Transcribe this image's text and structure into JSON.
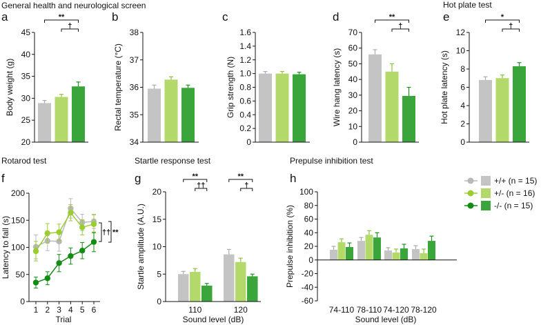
{
  "sections": {
    "general": "General health and neurological screen",
    "hotplate": "Hot plate test",
    "rotarod": "Rotarod test",
    "startle": "Startle response test",
    "ppi": "Prepulse inhibition test"
  },
  "legend": {
    "items": [
      {
        "label": "+/+ (n = 15)",
        "bar": "#c4c4c4",
        "dot": "#b8b8b8"
      },
      {
        "label": "+/- (n = 16)",
        "bar": "#b3d96b",
        "dot": "#9acd32"
      },
      {
        "label": "-/- (n = 15)",
        "bar": "#3aa53a",
        "dot": "#128c12"
      }
    ]
  },
  "chart_data": [
    {
      "panel": "a",
      "type": "bar",
      "ylabel": "Body weight (g)",
      "ylim": [
        20,
        45
      ],
      "yticks": [
        20,
        25,
        30,
        35,
        40,
        45
      ],
      "categories": [
        ""
      ],
      "series": [
        {
          "name": "+/+",
          "values": [
            28.9
          ],
          "sem": [
            0.6
          ]
        },
        {
          "name": "+/-",
          "values": [
            30.3
          ],
          "sem": [
            0.6
          ]
        },
        {
          "name": "-/-",
          "values": [
            32.7
          ],
          "sem": [
            1.0
          ]
        }
      ],
      "significance": [
        {
          "group": 0,
          "from": 0,
          "to": 2,
          "label": "**"
        },
        {
          "group": 0,
          "from": 1,
          "to": 2,
          "label": "†"
        }
      ]
    },
    {
      "panel": "b",
      "type": "bar",
      "ylabel": "Rectal temperature (°C)",
      "ylim": [
        34,
        38
      ],
      "yticks": [
        34,
        35,
        36,
        37,
        38
      ],
      "categories": [
        ""
      ],
      "series": [
        {
          "name": "+/+",
          "values": [
            35.95
          ],
          "sem": [
            0.13
          ]
        },
        {
          "name": "+/-",
          "values": [
            36.28
          ],
          "sem": [
            0.1
          ]
        },
        {
          "name": "-/-",
          "values": [
            35.98
          ],
          "sem": [
            0.1
          ]
        }
      ],
      "significance": []
    },
    {
      "panel": "c",
      "type": "bar",
      "ylabel": "Grip strength (N)",
      "ylim": [
        0,
        1.6
      ],
      "yticks": [
        "0",
        "0.2",
        "0.4",
        "0.6",
        "0.8",
        "1.0",
        "1.2",
        "1.4",
        "1.6"
      ],
      "categories": [
        ""
      ],
      "series": [
        {
          "name": "+/+",
          "values": [
            1.0
          ],
          "sem": [
            0.03
          ]
        },
        {
          "name": "+/-",
          "values": [
            1.0
          ],
          "sem": [
            0.03
          ]
        },
        {
          "name": "-/-",
          "values": [
            0.99
          ],
          "sem": [
            0.03
          ]
        }
      ],
      "significance": []
    },
    {
      "panel": "d",
      "type": "bar",
      "ylabel": "Wire hang latency (s)",
      "ylim": [
        0,
        70
      ],
      "yticks": [
        0,
        10,
        20,
        30,
        40,
        50,
        60,
        70
      ],
      "categories": [
        ""
      ],
      "series": [
        {
          "name": "+/+",
          "values": [
            56
          ],
          "sem": [
            3
          ]
        },
        {
          "name": "+/-",
          "values": [
            45
          ],
          "sem": [
            5
          ]
        },
        {
          "name": "-/-",
          "values": [
            29.5
          ],
          "sem": [
            5.5
          ]
        }
      ],
      "significance": [
        {
          "group": 0,
          "from": 0,
          "to": 2,
          "label": "**"
        },
        {
          "group": 0,
          "from": 1,
          "to": 2,
          "label": "†"
        }
      ]
    },
    {
      "panel": "e",
      "type": "bar",
      "ylabel": "Hot plate latency (s)",
      "ylim": [
        0,
        12
      ],
      "yticks": [
        0,
        2,
        4,
        6,
        8,
        10,
        12
      ],
      "categories": [
        ""
      ],
      "series": [
        {
          "name": "+/+",
          "values": [
            6.8
          ],
          "sem": [
            0.35
          ]
        },
        {
          "name": "+/-",
          "values": [
            7.0
          ],
          "sem": [
            0.35
          ]
        },
        {
          "name": "-/-",
          "values": [
            8.3
          ],
          "sem": [
            0.4
          ]
        }
      ],
      "significance": [
        {
          "group": 0,
          "from": 0,
          "to": 2,
          "label": "*"
        },
        {
          "group": 0,
          "from": 1,
          "to": 2,
          "label": "†"
        }
      ]
    },
    {
      "panel": "f",
      "type": "line",
      "ylabel": "Latency to fall (s)",
      "xlabel": "Trial",
      "ylim": [
        0,
        200
      ],
      "yticks": [
        0,
        50,
        100,
        150,
        200
      ],
      "x": [
        1,
        2,
        3,
        4,
        5,
        6
      ],
      "series": [
        {
          "name": "+/+",
          "values": [
            101,
            112,
            111,
            172,
            146,
            148
          ],
          "sem": [
            22,
            18,
            18,
            18,
            15,
            13
          ]
        },
        {
          "name": "+/-",
          "values": [
            93,
            126,
            128,
            164,
            137,
            143
          ],
          "sem": [
            18,
            18,
            15,
            15,
            14,
            17
          ]
        },
        {
          "name": "-/-",
          "values": [
            35,
            43,
            71,
            84,
            94,
            110
          ],
          "sem": [
            10,
            12,
            16,
            15,
            15,
            18
          ]
        }
      ],
      "annotations": [
        {
          "label": "††"
        },
        {
          "label": "**"
        }
      ]
    },
    {
      "panel": "g",
      "type": "bar",
      "ylabel": "Startle amplitude (A.U.)",
      "xlabel": "Sound level (dB)",
      "ylim": [
        0,
        20
      ],
      "yticks": [
        0,
        5,
        10,
        15,
        20
      ],
      "categories": [
        "110",
        "120"
      ],
      "series": [
        {
          "name": "+/+",
          "values": [
            5.0,
            8.6
          ],
          "sem": [
            0.5,
            0.9
          ]
        },
        {
          "name": "+/-",
          "values": [
            5.4,
            7.2
          ],
          "sem": [
            0.6,
            0.7
          ]
        },
        {
          "name": "-/-",
          "values": [
            2.9,
            4.6
          ],
          "sem": [
            0.4,
            0.4
          ]
        }
      ],
      "significance": [
        {
          "group": 0,
          "from": 0,
          "to": 2,
          "label": "**"
        },
        {
          "group": 0,
          "from": 1,
          "to": 2,
          "label": "††"
        },
        {
          "group": 1,
          "from": 0,
          "to": 2,
          "label": "**"
        },
        {
          "group": 1,
          "from": 1,
          "to": 2,
          "label": "†"
        }
      ]
    },
    {
      "panel": "h",
      "type": "bar",
      "ylabel": "Prepulse inhibition (%)",
      "xlabel": "Sound level (dB)",
      "ylim": [
        -60,
        100
      ],
      "yticks": [
        -60,
        -40,
        -20,
        0,
        20,
        40,
        60,
        80,
        100
      ],
      "categories": [
        "74-110",
        "78-110",
        "74-120",
        "78-120"
      ],
      "series": [
        {
          "name": "+/+",
          "values": [
            15,
            28,
            14,
            16
          ],
          "sem": [
            5,
            5,
            4,
            5
          ]
        },
        {
          "name": "+/-",
          "values": [
            26,
            37,
            11,
            10
          ],
          "sem": [
            5,
            6,
            5,
            6
          ]
        },
        {
          "name": "-/-",
          "values": [
            19,
            33,
            17,
            28
          ],
          "sem": [
            6,
            7,
            6,
            7
          ]
        }
      ],
      "significance": []
    }
  ]
}
